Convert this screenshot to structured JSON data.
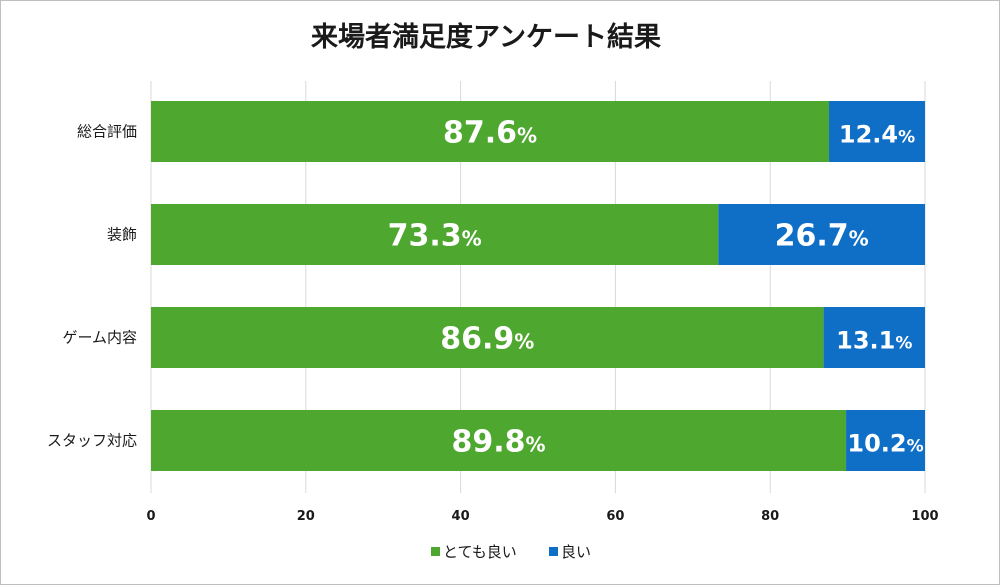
{
  "chart_data": {
    "type": "bar",
    "orientation": "horizontal",
    "stacked": true,
    "title": "来場者満足度アンケート結果",
    "categories": [
      "総合評価",
      "装飾",
      "ゲーム内容",
      "スタッフ対応"
    ],
    "series": [
      {
        "name": "とても良い",
        "color": "#4ea72e",
        "values": [
          87.6,
          73.3,
          86.9,
          89.8
        ]
      },
      {
        "name": "良い",
        "color": "#0f6fc6",
        "values": [
          12.4,
          26.7,
          13.1,
          10.2
        ]
      }
    ],
    "value_suffix": "%",
    "xlim": [
      0,
      100
    ],
    "xticks": [
      0,
      20,
      40,
      60,
      80,
      100
    ],
    "xlabel": "",
    "ylabel": "",
    "grid": true,
    "legend": "bottom"
  }
}
